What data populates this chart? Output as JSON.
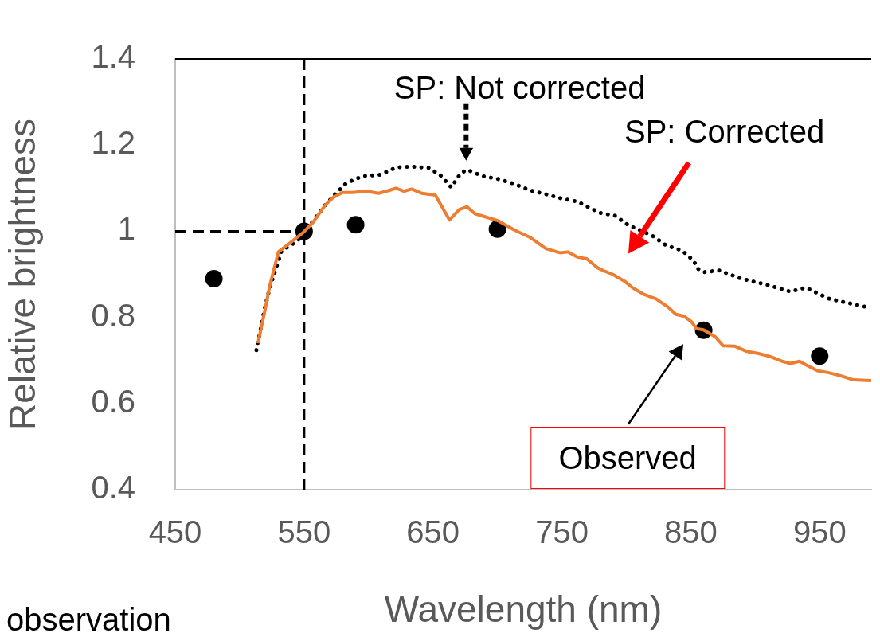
{
  "chart_data": {
    "type": "line",
    "xlabel": "Wavelength (nm)",
    "ylabel": "Relative brightness",
    "xlim": [
      450,
      990
    ],
    "xticks": [
      450,
      550,
      650,
      750,
      850,
      950
    ],
    "ylim": [
      0.4,
      1.4
    ],
    "yticks": [
      0.4,
      0.6,
      0.8,
      1,
      1.2,
      1.4
    ],
    "grid": false,
    "legend": false,
    "series": [
      {
        "color": "#ed7d31",
        "line_style": "solid",
        "marker": "none",
        "x": [
          514.2,
          519.1,
          523.4,
          530.1,
          538.7,
          549.7,
          557.0,
          566.2,
          572.3,
          579.7,
          587.6,
          598.0,
          607.8,
          616.3,
          621.3,
          627.4,
          633.5,
          641.4,
          651.8,
          662.8,
          670.2,
          676.3,
          682.4,
          689.8,
          700.8,
          713.0,
          725.2,
          737.5,
          748.5,
          754.6,
          761.9,
          769.3,
          777.2,
          783.3,
          789.4,
          798.6,
          804.7,
          813.9,
          823.1,
          832.3,
          838.4,
          844.5,
          850.6,
          854.3,
          859.8,
          869.0,
          875.1,
          884.3,
          893.4,
          902.6,
          911.8,
          921.0,
          927.1,
          934.4,
          940.5,
          948.5,
          956.4,
          966.8,
          976.0,
          990
        ],
        "values": [
          0.74,
          0.809,
          0.874,
          0.952,
          0.972,
          0.998,
          1.021,
          1.06,
          1.078,
          1.09,
          1.09,
          1.093,
          1.088,
          1.095,
          1.1,
          1.093,
          1.098,
          1.088,
          1.084,
          1.026,
          1.05,
          1.057,
          1.041,
          1.034,
          1.024,
          1.003,
          0.986,
          0.96,
          0.95,
          0.952,
          0.94,
          0.936,
          0.916,
          0.907,
          0.9,
          0.884,
          0.869,
          0.853,
          0.843,
          0.824,
          0.807,
          0.803,
          0.79,
          0.774,
          0.771,
          0.755,
          0.734,
          0.733,
          0.721,
          0.716,
          0.709,
          0.698,
          0.693,
          0.698,
          0.688,
          0.676,
          0.672,
          0.664,
          0.655,
          0.653
        ]
      },
      {
        "color": "#000000",
        "line_style": "dotted",
        "marker": "none",
        "x": [
          513.0,
          515.4,
          519.1,
          523.4,
          527.7,
          532.6,
          540.5,
          547.9,
          558.3,
          566.2,
          574.2,
          582.7,
          595.6,
          609.0,
          621.3,
          633.5,
          647.0,
          656.1,
          664.1,
          671.4,
          676.3,
          688.5,
          700.8,
          713.0,
          725.2,
          737.5,
          749.7,
          761.9,
          779.1,
          791.3,
          801.7,
          820.0,
          831.0,
          843.3,
          852.5,
          854.9,
          859.8,
          872.0,
          889.1,
          908.7,
          927.1,
          939.3,
          957.6,
          983.3,
          990
        ],
        "values": [
          0.724,
          0.759,
          0.817,
          0.869,
          0.909,
          0.955,
          0.969,
          0.986,
          1.029,
          1.06,
          1.086,
          1.112,
          1.128,
          1.131,
          1.148,
          1.15,
          1.147,
          1.129,
          1.102,
          1.134,
          1.143,
          1.128,
          1.121,
          1.11,
          1.095,
          1.086,
          1.076,
          1.069,
          1.043,
          1.036,
          1.014,
          0.99,
          0.967,
          0.955,
          0.931,
          0.914,
          0.905,
          0.909,
          0.89,
          0.876,
          0.86,
          0.869,
          0.843,
          0.826,
          0.822
        ]
      },
      {
        "type": "scatter",
        "color": "#000000",
        "marker": "circle",
        "x": [
          480,
          550,
          590,
          700,
          860,
          950
        ],
        "values": [
          0.89,
          1.0,
          1.015,
          1.005,
          0.77,
          0.71
        ]
      }
    ],
    "ref_lines": [
      {
        "axis": "x",
        "value": 550,
        "color": "#000000",
        "line_style": "dashed"
      },
      {
        "axis": "y",
        "value": 1,
        "color": "#000000",
        "line_style": "dashed"
      }
    ],
    "annotations": [
      "SP: Not corrected",
      "SP: Corrected",
      "Observed",
      "observation"
    ]
  }
}
